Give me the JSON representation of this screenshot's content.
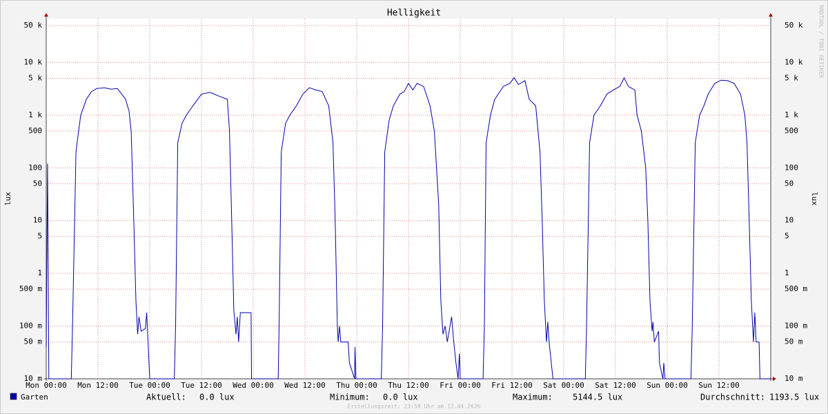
{
  "chart_data": {
    "type": "line",
    "title": "Helligkeit",
    "ylabel": "lux",
    "log_y": true,
    "grid": true,
    "watermark": "RRDTOOL / TOBI OETIKER",
    "footer": "Erstellungszeit: 23:58 Uhr am 12.04.2026",
    "xlim": [
      0,
      168
    ],
    "xticks": [
      {
        "value": 0,
        "label": "Mon 00:00"
      },
      {
        "value": 12,
        "label": "Mon 12:00"
      },
      {
        "value": 24,
        "label": "Tue 00:00"
      },
      {
        "value": 36,
        "label": "Tue 12:00"
      },
      {
        "value": 48,
        "label": "Wed 00:00"
      },
      {
        "value": 60,
        "label": "Wed 12:00"
      },
      {
        "value": 72,
        "label": "Thu 00:00"
      },
      {
        "value": 84,
        "label": "Thu 12:00"
      },
      {
        "value": 96,
        "label": "Fri 00:00"
      },
      {
        "value": 108,
        "label": "Fri 12:00"
      },
      {
        "value": 120,
        "label": "Sat 00:00"
      },
      {
        "value": 132,
        "label": "Sat 12:00"
      },
      {
        "value": 144,
        "label": "Sun 00:00"
      },
      {
        "value": 156,
        "label": "Sun 12:00"
      }
    ],
    "ylim": [
      0.01,
      67600
    ],
    "yticks": [
      {
        "value": 0.01,
        "label": "10 m"
      },
      {
        "value": 0.05,
        "label": "50 m"
      },
      {
        "value": 0.1,
        "label": "100 m"
      },
      {
        "value": 0.5,
        "label": "500 m"
      },
      1,
      5,
      10,
      50,
      100,
      500,
      {
        "value": 1000,
        "label": "1 k"
      },
      {
        "value": 5000,
        "label": "5 k"
      },
      {
        "value": 10000,
        "label": "10 k"
      },
      {
        "value": 50000,
        "label": "50 k"
      }
    ],
    "x": [
      0,
      0.3,
      0.6,
      5.8,
      6.1,
      6.9,
      7.5,
      8,
      9.3,
      10.5,
      11.7,
      13.5,
      15,
      16.5,
      17.5,
      18.4,
      19.2,
      19.7,
      20.3,
      20.8,
      21.2,
      21.5,
      22,
      23,
      23.3,
      24,
      24.5,
      29.7,
      30,
      30.5,
      31.5,
      32.5,
      34,
      36,
      38,
      40,
      42,
      42.5,
      43,
      43.5,
      44,
      44.3,
      44.6,
      45,
      46.5,
      47.5,
      47.6,
      48.5,
      53.8,
      54,
      54.5,
      55.5,
      56.5,
      58,
      59.5,
      61,
      62.5,
      64,
      65.5,
      66.5,
      67,
      67.5,
      67.7,
      68,
      68.3,
      70,
      70.3,
      71.5,
      71.6,
      71.8,
      77.7,
      78,
      78.5,
      79.5,
      80.5,
      82,
      83,
      84,
      85,
      86,
      87.5,
      89,
      90,
      91,
      91.5,
      92,
      92.5,
      93,
      94,
      94.5,
      95,
      95.5,
      95.8,
      96,
      101.3,
      101.6,
      102,
      103,
      104,
      106,
      107.5,
      108.5,
      109.5,
      111,
      112,
      113.5,
      114.5,
      115,
      115.5,
      116,
      116.3,
      116.6,
      117.5,
      125,
      125.3,
      126,
      127,
      128.5,
      130,
      131.5,
      133,
      134,
      135,
      136.5,
      137,
      138,
      139,
      139.5,
      140,
      140.5,
      140.7,
      141,
      142,
      142.2,
      143,
      143.2,
      143.5,
      149.5,
      149.8,
      150.5,
      151.5,
      152.5,
      153.5,
      155,
      156.5,
      158,
      159.5,
      161,
      162,
      162.5,
      163,
      163.5,
      164,
      164.3,
      164.6,
      165.3,
      165.5,
      168
    ],
    "series": [
      {
        "name": "Garten",
        "color": "#0000aa",
        "values": [
          0.04,
          120,
          0.01,
          0.01,
          0.1,
          200,
          500,
          1000,
          2000,
          2800,
          3200,
          3300,
          3100,
          3200,
          2500,
          2000,
          1200,
          500,
          10,
          0.3,
          0.07,
          0.15,
          0.08,
          0.09,
          0.18,
          0.01,
          0.01,
          0.01,
          0.1,
          300,
          700,
          1000,
          1500,
          2500,
          2700,
          2300,
          2000,
          500,
          10,
          0.2,
          0.07,
          0.15,
          0.05,
          0.18,
          0.18,
          0.18,
          0.01,
          0.01,
          0.01,
          0.1,
          200,
          700,
          1000,
          1500,
          2500,
          3300,
          3000,
          2800,
          1500,
          300,
          10,
          0.1,
          0.05,
          0.1,
          0.05,
          0.05,
          0.02,
          0.01,
          0.04,
          0.01,
          0.01,
          0.1,
          200,
          800,
          1500,
          2500,
          2800,
          4000,
          3000,
          4000,
          3500,
          1500,
          500,
          20,
          0.3,
          0.07,
          0.1,
          0.05,
          0.15,
          0.05,
          0.02,
          0.01,
          0.03,
          0.01,
          0.01,
          0.1,
          300,
          1000,
          2000,
          3500,
          4000,
          5100,
          3800,
          4500,
          2000,
          1500,
          200,
          10,
          0.3,
          0.05,
          0.12,
          0.05,
          0.01,
          0.01,
          0.1,
          300,
          1000,
          1500,
          2500,
          3000,
          3500,
          5100,
          3500,
          3000,
          1000,
          500,
          100,
          10,
          0.3,
          0.08,
          0.12,
          0.05,
          0.08,
          0.02,
          0.01,
          0.02,
          0.01,
          0.01,
          0.1,
          300,
          1000,
          1500,
          2500,
          4000,
          4600,
          4500,
          4000,
          2500,
          1000,
          300,
          10,
          0.3,
          0.05,
          0.18,
          0.05,
          0.05,
          0.01,
          0.01
        ]
      }
    ],
    "stats": [
      {
        "label": "Aktuell:",
        "value": "0.0 lux"
      },
      {
        "label": "Minimum:",
        "value": "0.0 lux"
      },
      {
        "label": "Maximum:",
        "value": "5144.5 lux"
      },
      {
        "label": "Durchschnitt:",
        "value": "1193.5 lux"
      }
    ]
  }
}
